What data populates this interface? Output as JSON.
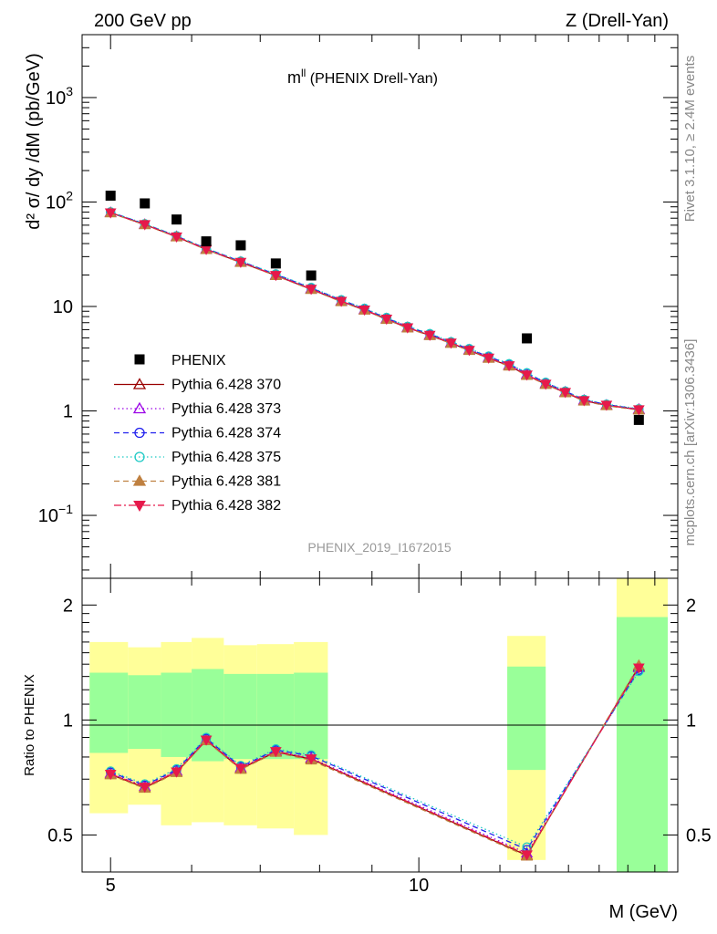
{
  "header": {
    "left": "200 GeV pp",
    "right": "Z (Drell-Yan)"
  },
  "plot_title": {
    "main": "m",
    "sup": "ll",
    "rest": " (PHENIX Drell-Yan)"
  },
  "analysis_id": "PHENIX_2019_I1672015",
  "side_texts": {
    "rivet": "Rivet 3.1.10, ≥ 2.4M events",
    "mcplots": "mcplots.cern.ch [arXiv:1306.3436]"
  },
  "colors": {
    "data": "#000000",
    "band_inner": "#99ff99",
    "band_outer": "#ffff99"
  },
  "chart_data": [
    {
      "type": "scatter",
      "title": "",
      "ylabel": "d² σ/ dy /dM (pb/GeV)",
      "xlabel": "",
      "x_scale": "log",
      "y_scale": "log",
      "xlim": [
        4.69,
        17.9
      ],
      "ylim": [
        0.025,
        4000
      ],
      "y_ticks": [
        {
          "v": 0.1,
          "base": "10",
          "exp": "−1"
        },
        {
          "v": 1,
          "base": "1",
          "exp": ""
        },
        {
          "v": 10,
          "base": "10",
          "exp": ""
        },
        {
          "v": 100,
          "base": "10",
          "exp": "2"
        },
        {
          "v": 1000,
          "base": "10",
          "exp": "3"
        }
      ],
      "x": [
        5.0,
        5.4,
        5.8,
        6.2,
        6.7,
        7.25,
        7.85,
        8.4,
        8.85,
        9.3,
        9.75,
        10.25,
        10.75,
        11.2,
        11.7,
        12.25,
        12.75,
        13.3,
        13.9,
        14.5,
        15.25,
        16.4
      ],
      "data": {
        "name": "PHENIX",
        "x": [
          5.0,
          5.4,
          5.8,
          6.2,
          6.7,
          7.25,
          7.85,
          12.75,
          16.4
        ],
        "y": [
          115,
          97,
          68,
          42,
          38.5,
          25.8,
          19.8,
          4.95,
          0.82
        ]
      },
      "series": [
        {
          "name": "Pythia 6.428 370",
          "color": "#990000",
          "marker": "tri-up-open",
          "dash": "",
          "y": [
            79,
            60.8,
            46.4,
            35.1,
            26.4,
            19.8,
            14.6,
            11.2,
            9.25,
            7.55,
            6.25,
            5.3,
            4.45,
            3.8,
            3.2,
            2.7,
            2.2,
            1.8,
            1.5,
            1.25,
            1.13,
            1.03
          ]
        },
        {
          "name": "Pythia 6.428 373",
          "color": "#9a00e6",
          "marker": "tri-up-open",
          "dash": "1.5,3",
          "y": [
            79.5,
            61.2,
            46.8,
            35.5,
            26.7,
            20.0,
            14.8,
            11.3,
            9.35,
            7.65,
            6.3,
            5.35,
            4.5,
            3.85,
            3.25,
            2.75,
            2.25,
            1.83,
            1.52,
            1.27,
            1.14,
            1.04
          ]
        },
        {
          "name": "Pythia 6.428 374",
          "color": "#2020ee",
          "marker": "circle-open",
          "dash": "6,4",
          "y": [
            80,
            61.6,
            47.2,
            35.8,
            27.0,
            20.3,
            15.0,
            11.5,
            9.5,
            7.75,
            6.4,
            5.45,
            4.55,
            3.9,
            3.3,
            2.8,
            2.3,
            1.86,
            1.54,
            1.28,
            1.15,
            1.04
          ]
        },
        {
          "name": "Pythia 6.428 375",
          "color": "#1bc9c4",
          "marker": "circle-open",
          "dash": "1.5,3",
          "y": [
            80.5,
            62.0,
            47.5,
            36.0,
            27.2,
            20.5,
            15.2,
            11.6,
            9.6,
            7.85,
            6.45,
            5.5,
            4.6,
            3.95,
            3.35,
            2.83,
            2.32,
            1.88,
            1.55,
            1.29,
            1.16,
            1.05
          ]
        },
        {
          "name": "Pythia 6.428 381",
          "color": "#bf8040",
          "marker": "tri-up-filled",
          "dash": "6,4",
          "y": [
            78.5,
            60.5,
            46.2,
            35.0,
            26.3,
            19.7,
            14.5,
            11.1,
            9.2,
            7.5,
            6.2,
            5.25,
            4.42,
            3.78,
            3.18,
            2.68,
            2.18,
            1.79,
            1.49,
            1.24,
            1.12,
            1.02
          ]
        },
        {
          "name": "Pythia 6.428 382",
          "color": "#e6194b",
          "marker": "tri-down-filled",
          "dash": "8,3,2,3",
          "y": [
            79.2,
            61.0,
            46.6,
            35.3,
            26.6,
            19.9,
            14.7,
            11.25,
            9.3,
            7.6,
            6.28,
            5.32,
            4.48,
            3.82,
            3.22,
            2.72,
            2.22,
            1.81,
            1.51,
            1.26,
            1.14,
            1.03
          ]
        }
      ]
    },
    {
      "type": "line",
      "ylabel": "Ratio to PHENIX",
      "xlabel": "M (GeV)",
      "x_scale": "log",
      "y_scale": "log",
      "xlim": [
        4.69,
        17.9
      ],
      "ylim": [
        0.4,
        2.35
      ],
      "y_ticks": [
        0.5,
        1,
        2
      ],
      "x_ticks": [
        {
          "v": 5,
          "label": "5"
        },
        {
          "v": 10,
          "label": "10"
        }
      ],
      "bands": [
        {
          "x0": 4.77,
          "x1": 5.2,
          "outer": [
            0.57,
            1.6
          ],
          "inner": [
            0.82,
            1.33
          ]
        },
        {
          "x0": 5.2,
          "x1": 5.6,
          "outer": [
            0.6,
            1.55
          ],
          "inner": [
            0.84,
            1.31
          ]
        },
        {
          "x0": 5.6,
          "x1": 6.0,
          "outer": [
            0.53,
            1.6
          ],
          "inner": [
            0.8,
            1.33
          ]
        },
        {
          "x0": 6.0,
          "x1": 6.45,
          "outer": [
            0.54,
            1.64
          ],
          "inner": [
            0.78,
            1.36
          ]
        },
        {
          "x0": 6.45,
          "x1": 6.95,
          "outer": [
            0.53,
            1.57
          ],
          "inner": [
            0.79,
            1.32
          ]
        },
        {
          "x0": 6.95,
          "x1": 7.55,
          "outer": [
            0.52,
            1.58
          ],
          "inner": [
            0.79,
            1.32
          ]
        },
        {
          "x0": 7.55,
          "x1": 8.15,
          "outer": [
            0.5,
            1.6
          ],
          "inner": [
            0.79,
            1.33
          ]
        },
        {
          "x0": 12.2,
          "x1": 13.3,
          "outer": [
            0.43,
            1.66
          ],
          "inner": [
            0.74,
            1.38
          ]
        },
        {
          "x0": 15.6,
          "x1": 17.5,
          "outer": [
            0.4,
            2.35
          ],
          "inner": [
            0.4,
            1.86
          ]
        }
      ],
      "ratio_x": [
        5.0,
        5.4,
        5.8,
        6.2,
        6.7,
        7.25,
        7.85,
        12.75,
        16.4
      ],
      "series": [
        {
          "name": "Pythia 6.428 370",
          "y": [
            0.72,
            0.665,
            0.73,
            0.885,
            0.745,
            0.825,
            0.79,
            0.442,
            1.38
          ]
        },
        {
          "name": "Pythia 6.428 373",
          "y": [
            0.725,
            0.67,
            0.735,
            0.89,
            0.75,
            0.83,
            0.795,
            0.448,
            1.37
          ]
        },
        {
          "name": "Pythia 6.428 374",
          "y": [
            0.73,
            0.675,
            0.74,
            0.895,
            0.755,
            0.835,
            0.805,
            0.458,
            1.35
          ]
        },
        {
          "name": "Pythia 6.428 375",
          "y": [
            0.735,
            0.68,
            0.745,
            0.9,
            0.76,
            0.84,
            0.81,
            0.465,
            1.34
          ]
        },
        {
          "name": "Pythia 6.428 381",
          "y": [
            0.718,
            0.662,
            0.728,
            0.882,
            0.742,
            0.822,
            0.785,
            0.44,
            1.39
          ]
        },
        {
          "name": "Pythia 6.428 382",
          "y": [
            0.722,
            0.668,
            0.732,
            0.887,
            0.748,
            0.828,
            0.792,
            0.444,
            1.37
          ]
        }
      ]
    }
  ]
}
